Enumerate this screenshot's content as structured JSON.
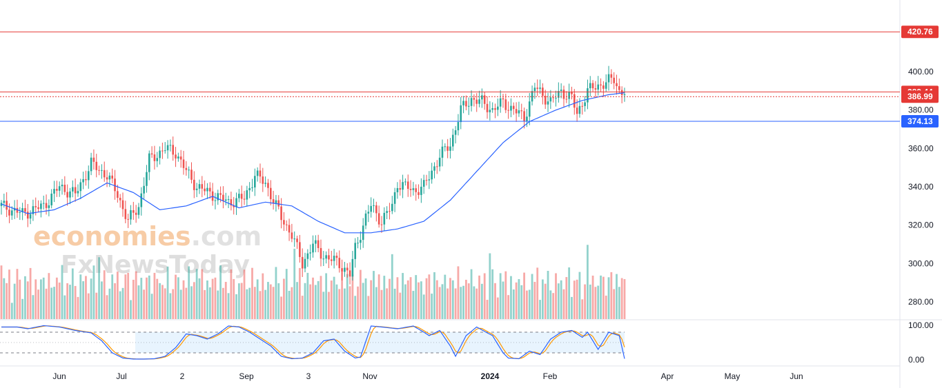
{
  "chart_data": {
    "type": "candlestick",
    "price_axis": {
      "min": 270,
      "max": 430,
      "ticks": [
        400,
        380,
        360,
        340,
        320,
        300,
        280
      ],
      "tick_labels": [
        "400.00",
        "380.00",
        "360.00",
        "340.00",
        "320.00",
        "300.00",
        "280.00"
      ]
    },
    "oscillator_axis": {
      "min": 0,
      "max": 100,
      "tick_labels": [
        "100.00",
        "0.00"
      ],
      "upper_band": 80,
      "lower_band": 20,
      "mid_band": 50
    },
    "time_labels": [
      "Jun",
      "Jul",
      "2",
      "Sep",
      "3",
      "Nov",
      "2024",
      "Feb",
      "Apr",
      "May",
      "Jun"
    ],
    "horizontal_levels": [
      {
        "value": 420.76,
        "label": "420.76",
        "color": "#e53935",
        "style": "solid"
      },
      {
        "value": 389.44,
        "label": "389.44",
        "color": "#e53935",
        "style": "solid"
      },
      {
        "value": 386.99,
        "label": "386.99",
        "color": "#e53935",
        "style": "dotted"
      },
      {
        "value": 374.13,
        "label": "374.13",
        "color": "#2962ff",
        "style": "solid"
      }
    ],
    "price_path": [
      [
        0,
        330
      ],
      [
        8,
        326
      ],
      [
        16,
        330
      ],
      [
        22,
        340
      ],
      [
        28,
        336
      ],
      [
        34,
        352
      ],
      [
        40,
        346
      ],
      [
        44,
        336
      ],
      [
        48,
        322
      ],
      [
        52,
        330
      ],
      [
        56,
        354
      ],
      [
        62,
        360
      ],
      [
        66,
        358
      ],
      [
        70,
        348
      ],
      [
        74,
        340
      ],
      [
        80,
        336
      ],
      [
        86,
        332
      ],
      [
        92,
        334
      ],
      [
        96,
        346
      ],
      [
        100,
        342
      ],
      [
        106,
        324
      ],
      [
        110,
        315
      ],
      [
        114,
        300
      ],
      [
        118,
        310
      ],
      [
        122,
        304
      ],
      [
        128,
        300
      ],
      [
        132,
        294
      ],
      [
        134,
        308
      ],
      [
        138,
        324
      ],
      [
        140,
        330
      ],
      [
        144,
        322
      ],
      [
        148,
        330
      ],
      [
        150,
        342
      ],
      [
        156,
        338
      ],
      [
        160,
        340
      ],
      [
        166,
        356
      ],
      [
        170,
        362
      ],
      [
        174,
        380
      ],
      [
        178,
        386
      ],
      [
        182,
        384
      ],
      [
        186,
        380
      ],
      [
        190,
        384
      ],
      [
        194,
        380
      ],
      [
        198,
        376
      ],
      [
        200,
        384
      ],
      [
        202,
        392
      ],
      [
        208,
        384
      ],
      [
        212,
        390
      ],
      [
        216,
        386
      ],
      [
        218,
        378
      ],
      [
        222,
        390
      ],
      [
        228,
        394
      ],
      [
        232,
        396
      ],
      [
        234,
        390
      ],
      [
        236,
        389.44
      ]
    ],
    "ma_path": [
      [
        0,
        331
      ],
      [
        10,
        326
      ],
      [
        20,
        328
      ],
      [
        30,
        334
      ],
      [
        40,
        342
      ],
      [
        50,
        337
      ],
      [
        60,
        328
      ],
      [
        70,
        330
      ],
      [
        80,
        335
      ],
      [
        90,
        329
      ],
      [
        100,
        332
      ],
      [
        110,
        330
      ],
      [
        120,
        322
      ],
      [
        130,
        316
      ],
      [
        140,
        316
      ],
      [
        150,
        318
      ],
      [
        160,
        322
      ],
      [
        170,
        333
      ],
      [
        180,
        348
      ],
      [
        190,
        363
      ],
      [
        200,
        374
      ],
      [
        210,
        380
      ],
      [
        220,
        385
      ],
      [
        230,
        388
      ],
      [
        236,
        389
      ]
    ],
    "stoch_k_path": [
      [
        0,
        95
      ],
      [
        6,
        95
      ],
      [
        10,
        90
      ],
      [
        16,
        99
      ],
      [
        22,
        95
      ],
      [
        28,
        85
      ],
      [
        34,
        78
      ],
      [
        38,
        55
      ],
      [
        42,
        20
      ],
      [
        46,
        5
      ],
      [
        50,
        2
      ],
      [
        54,
        2
      ],
      [
        58,
        3
      ],
      [
        62,
        10
      ],
      [
        66,
        35
      ],
      [
        70,
        75
      ],
      [
        74,
        70
      ],
      [
        78,
        60
      ],
      [
        82,
        75
      ],
      [
        86,
        98
      ],
      [
        90,
        95
      ],
      [
        94,
        80
      ],
      [
        98,
        60
      ],
      [
        102,
        40
      ],
      [
        106,
        10
      ],
      [
        110,
        3
      ],
      [
        114,
        5
      ],
      [
        118,
        20
      ],
      [
        122,
        55
      ],
      [
        126,
        60
      ],
      [
        130,
        25
      ],
      [
        134,
        5
      ],
      [
        136,
        8
      ],
      [
        140,
        98
      ],
      [
        144,
        95
      ],
      [
        150,
        90
      ],
      [
        156,
        98
      ],
      [
        160,
        80
      ],
      [
        162,
        70
      ],
      [
        166,
        85
      ],
      [
        170,
        40
      ],
      [
        172,
        10
      ],
      [
        176,
        70
      ],
      [
        180,
        95
      ],
      [
        184,
        78
      ],
      [
        186,
        70
      ],
      [
        190,
        20
      ],
      [
        192,
        5
      ],
      [
        196,
        3
      ],
      [
        200,
        25
      ],
      [
        204,
        15
      ],
      [
        208,
        60
      ],
      [
        212,
        80
      ],
      [
        216,
        85
      ],
      [
        220,
        65
      ],
      [
        222,
        80
      ],
      [
        226,
        30
      ],
      [
        230,
        80
      ],
      [
        234,
        70
      ],
      [
        236,
        3
      ]
    ],
    "volume_heights": [
      42,
      52,
      38,
      65,
      25,
      44,
      61,
      48,
      30,
      57,
      41,
      66,
      35,
      53,
      28,
      47,
      62,
      39,
      55,
      33,
      46,
      58,
      40,
      69,
      31,
      50,
      37,
      63,
      45,
      29,
      54,
      42,
      60,
      36,
      48,
      67,
      32,
      51,
      44,
      59,
      27,
      46,
      56,
      38,
      64,
      43,
      35,
      52,
      61,
      30,
      49,
      57,
      40,
      66,
      34,
      47,
      55,
      39,
      62,
      45
    ]
  }
}
